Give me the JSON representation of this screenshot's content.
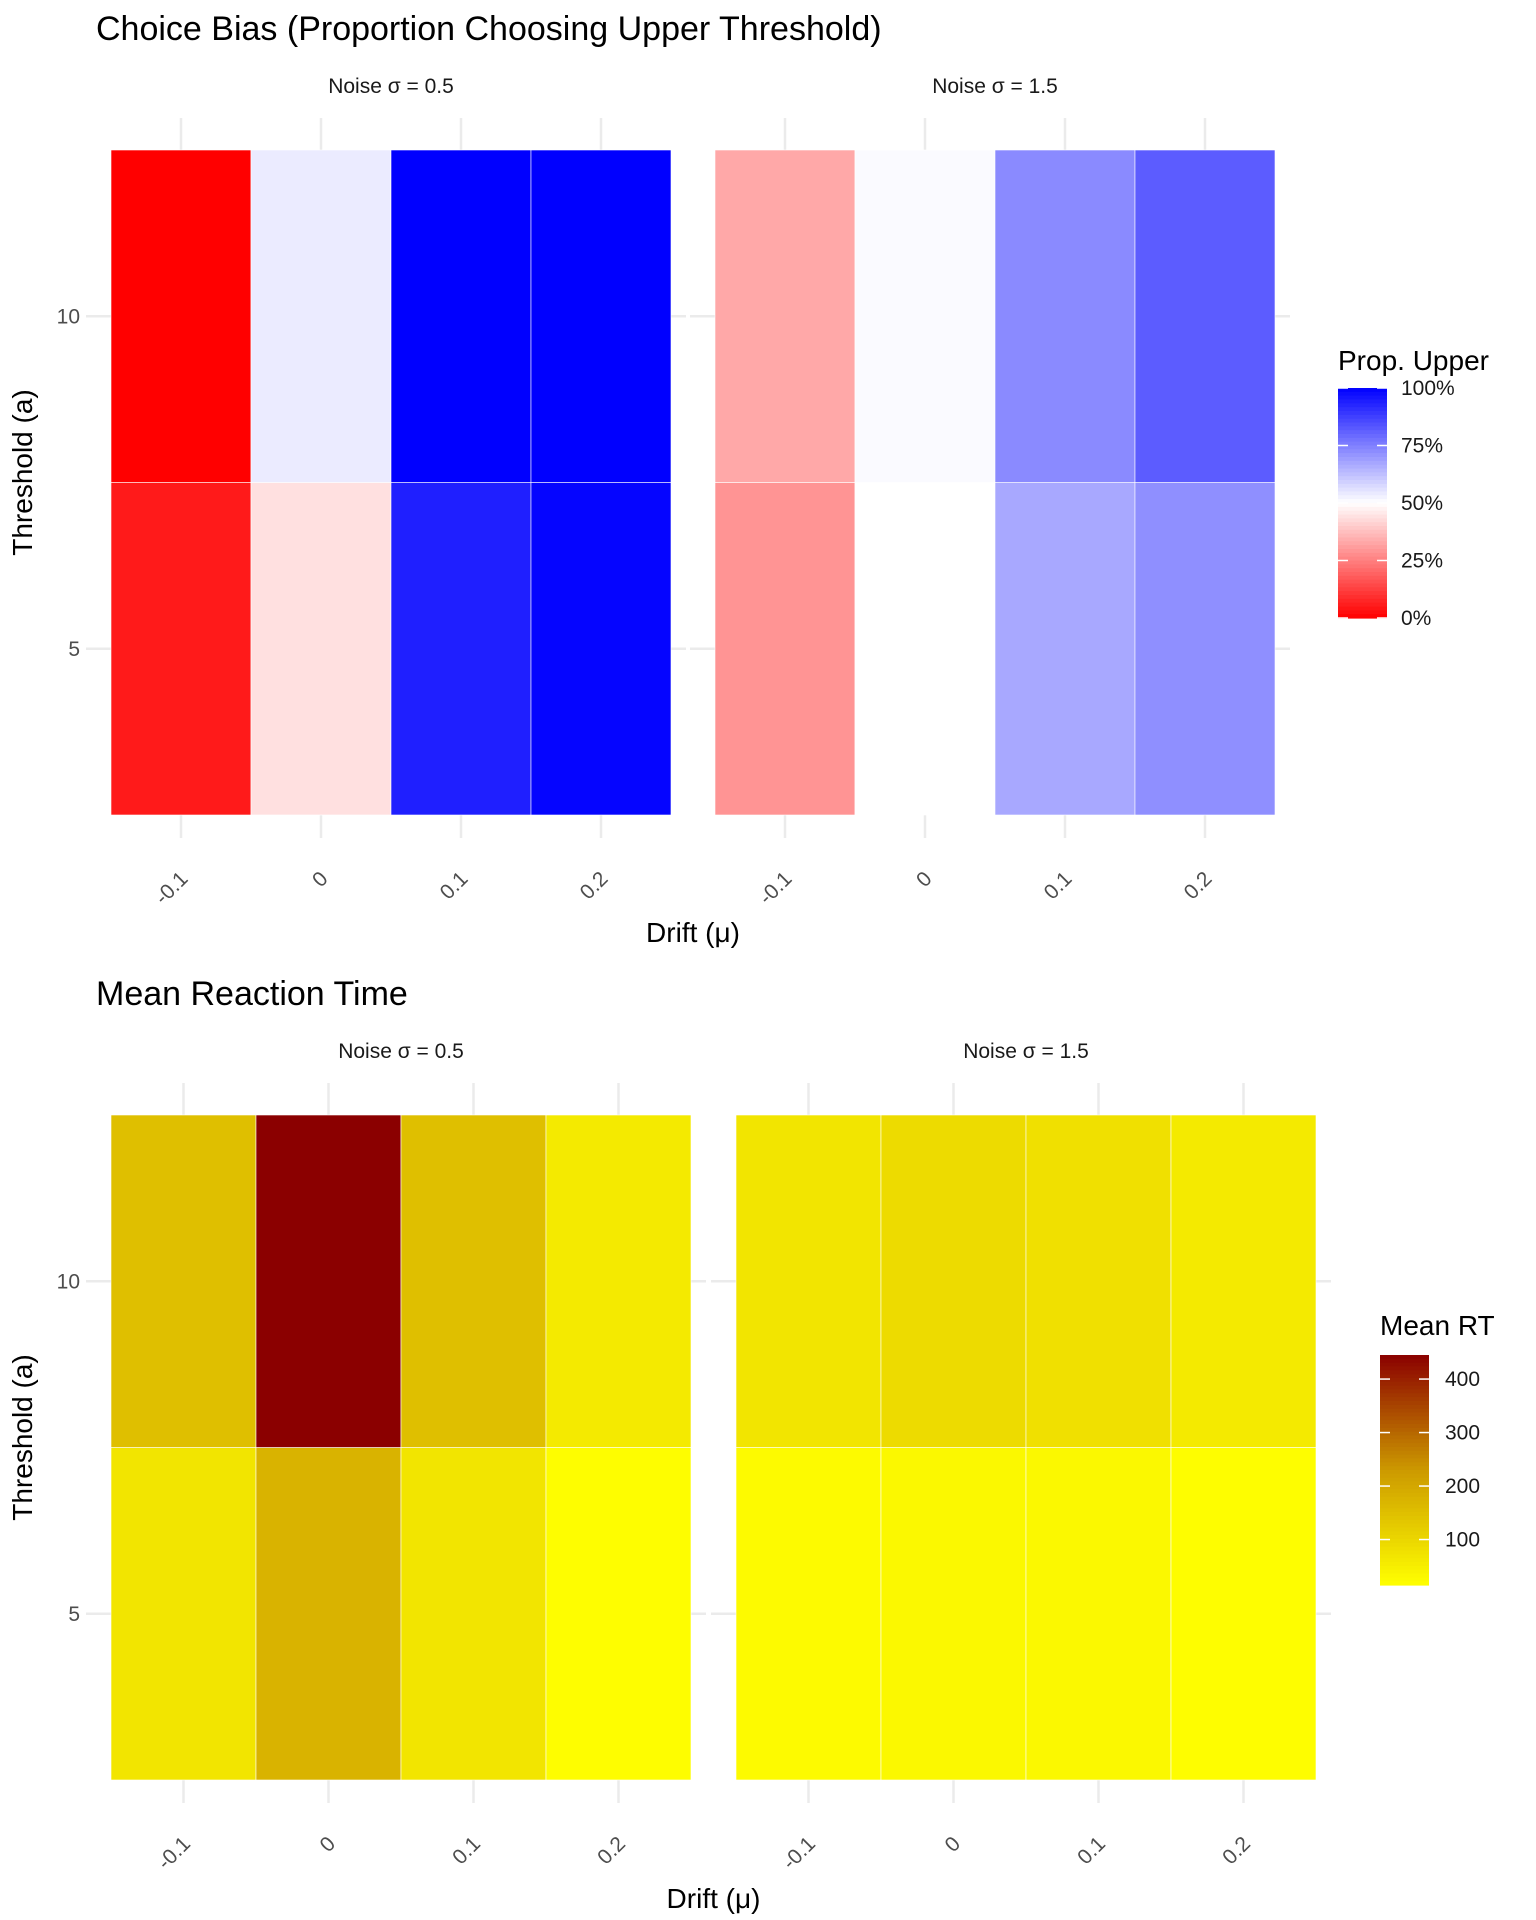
{
  "chart_data": [
    {
      "type": "heatmap",
      "title": "Choice Bias (Proportion Choosing Upper Threshold)",
      "xlabel": "Drift (μ)",
      "ylabel": "Threshold (a)",
      "x": [
        "-0.1",
        "0",
        "0.1",
        "0.2"
      ],
      "y": [
        5,
        10
      ],
      "y_ticks": [
        "5",
        "10"
      ],
      "facets": [
        {
          "label": "Noise σ = 0.5",
          "values": {
            "5": [
              0.05,
              0.44,
              0.94,
              0.99
            ],
            "10": [
              0.0,
              0.54,
              1.0,
              1.0
            ]
          }
        },
        {
          "label": "Noise σ = 1.5",
          "values": {
            "5": [
              0.29,
              0.5,
              0.67,
              0.72
            ],
            "10": [
              0.33,
              0.51,
              0.73,
              0.82
            ]
          }
        }
      ],
      "legend": {
        "title": "Prop. Upper",
        "position": "right",
        "ticks": [
          "0%",
          "25%",
          "50%",
          "75%",
          "100%"
        ],
        "tick_values": [
          0,
          0.25,
          0.5,
          0.75,
          1
        ],
        "limits": [
          0,
          1
        ],
        "low_color": "#ff0000",
        "mid_color": "#ffffff",
        "high_color": "#0000ff",
        "midpoint": 0.5
      },
      "grid": true
    },
    {
      "type": "heatmap",
      "title": "Mean Reaction Time",
      "xlabel": "Drift (μ)",
      "ylabel": "Threshold (a)",
      "x": [
        "-0.1",
        "0",
        "0.1",
        "0.2"
      ],
      "y": [
        5,
        10
      ],
      "y_ticks": [
        "5",
        "10"
      ],
      "facets": [
        {
          "label": "Noise σ = 0.5",
          "values": {
            "5": [
              70,
              175,
              70,
              20
            ],
            "10": [
              150,
              445,
              150,
              60
            ]
          }
        },
        {
          "label": "Noise σ = 1.5",
          "values": {
            "5": [
              25,
              30,
              30,
              20
            ],
            "10": [
              70,
              90,
              80,
              60
            ]
          }
        }
      ],
      "legend": {
        "title": "Mean RT",
        "position": "right",
        "ticks": [
          "100",
          "200",
          "300",
          "400"
        ],
        "tick_values": [
          100,
          200,
          300,
          400
        ],
        "limits": [
          15,
          445
        ],
        "low_color": "#ffff00",
        "mid_color": "#cc9900",
        "high_color": "#8b0000"
      },
      "grid": true
    }
  ]
}
